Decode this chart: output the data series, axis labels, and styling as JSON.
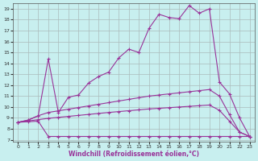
{
  "xlabel": "Windchill (Refroidissement éolien,°C)",
  "bg_color": "#c8efef",
  "line_color": "#993399",
  "grid_color": "#aabbbb",
  "xlim": [
    -0.5,
    23.5
  ],
  "ylim": [
    6.8,
    19.5
  ],
  "xtick_labels": [
    "0",
    "1",
    "2",
    "3",
    "4",
    "5",
    "6",
    "7",
    "8",
    "9",
    "10",
    "11",
    "12",
    "13",
    "14",
    "15",
    "16",
    "17",
    "18",
    "19",
    "20",
    "21",
    "22",
    "23"
  ],
  "ytick_labels": [
    "7",
    "8",
    "9",
    "10",
    "11",
    "12",
    "13",
    "14",
    "15",
    "16",
    "17",
    "18",
    "19"
  ],
  "series": [
    {
      "x": [
        0,
        1,
        2,
        3,
        4,
        5,
        6,
        7,
        8,
        9,
        10,
        11,
        12,
        13,
        14,
        15,
        16,
        17,
        18,
        19,
        20,
        21,
        22,
        23
      ],
      "y": [
        8.6,
        8.8,
        9.2,
        14.4,
        9.5,
        10.9,
        11.1,
        12.2,
        12.8,
        13.2,
        14.5,
        15.3,
        15.0,
        17.2,
        18.5,
        18.2,
        18.1,
        19.3,
        18.6,
        19.0,
        12.3,
        11.2,
        9.0,
        7.3
      ]
    },
    {
      "x": [
        0,
        1,
        2,
        3,
        4,
        5,
        6,
        7,
        8,
        9,
        10,
        11,
        12,
        13,
        14,
        15,
        16,
        17,
        18,
        19,
        20,
        21,
        22,
        23
      ],
      "y": [
        8.6,
        8.8,
        9.2,
        9.5,
        9.65,
        9.8,
        9.95,
        10.1,
        10.25,
        10.4,
        10.55,
        10.7,
        10.85,
        11.0,
        11.1,
        11.2,
        11.3,
        11.4,
        11.5,
        11.6,
        11.0,
        9.3,
        7.7,
        7.3
      ]
    },
    {
      "x": [
        0,
        1,
        2,
        3,
        4,
        5,
        6,
        7,
        8,
        9,
        10,
        11,
        12,
        13,
        14,
        15,
        16,
        17,
        18,
        19,
        20,
        21,
        22,
        23
      ],
      "y": [
        8.6,
        8.72,
        8.84,
        8.96,
        9.05,
        9.14,
        9.23,
        9.32,
        9.41,
        9.5,
        9.58,
        9.66,
        9.74,
        9.82,
        9.88,
        9.94,
        10.0,
        10.06,
        10.12,
        10.18,
        9.7,
        8.7,
        7.7,
        7.3
      ]
    },
    {
      "x": [
        0,
        1,
        2,
        3,
        4,
        5,
        6,
        7,
        8,
        9,
        10,
        11,
        12,
        13,
        14,
        15,
        16,
        17,
        18,
        19,
        20,
        21,
        22,
        23
      ],
      "y": [
        8.6,
        8.65,
        8.7,
        7.3,
        7.3,
        7.3,
        7.3,
        7.3,
        7.3,
        7.3,
        7.3,
        7.3,
        7.3,
        7.3,
        7.3,
        7.3,
        7.3,
        7.3,
        7.3,
        7.3,
        7.3,
        7.3,
        7.3,
        7.3
      ]
    }
  ]
}
